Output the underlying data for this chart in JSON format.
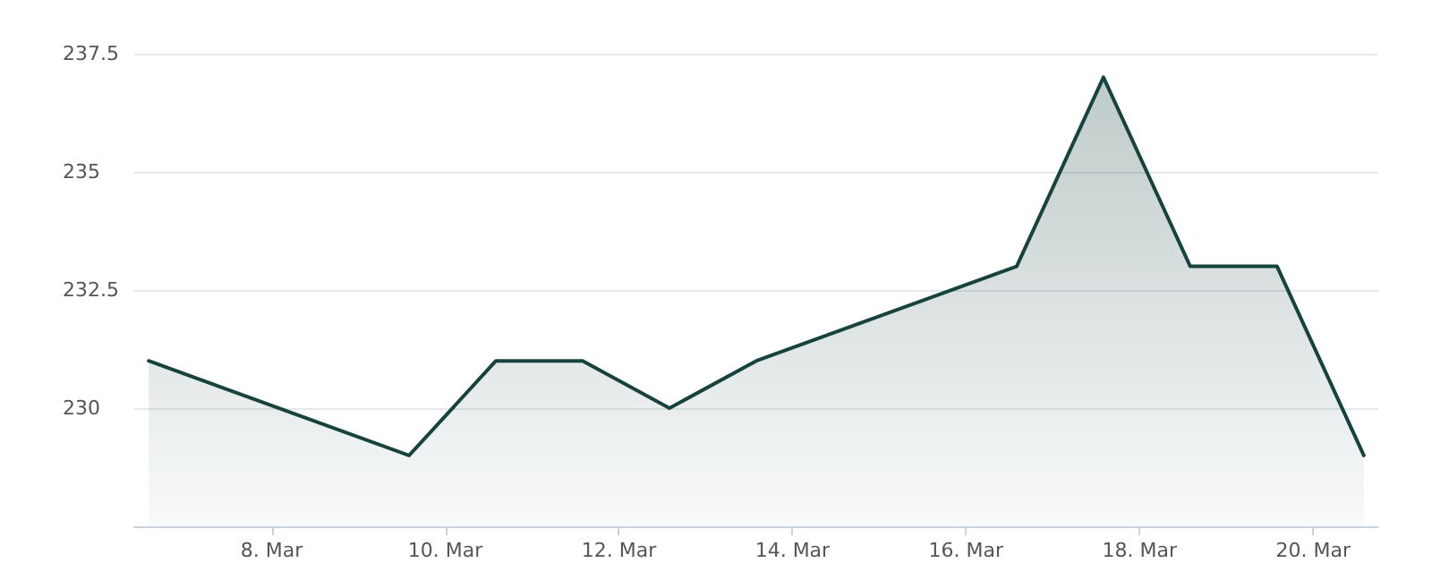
{
  "chart_data": {
    "type": "area",
    "x": [
      "--03-06T14:00",
      "--03-09T14:00",
      "--03-10T14:00",
      "--03-11T14:00",
      "--03-12T14:00",
      "--03-13T14:00",
      "--03-16T14:00",
      "--03-17T14:00",
      "--03-18T14:00",
      "--03-19T14:00",
      "--03-20T14:00"
    ],
    "series": [
      {
        "color": "#17433f",
        "values": [
          231,
          229,
          231,
          231,
          230,
          231,
          233,
          237,
          233,
          233,
          229
        ]
      }
    ],
    "xlim": [
      "--03-06T10:00",
      "--03-20T18:00"
    ],
    "xticks": [
      {
        "value": "--03-08",
        "label": "8. Mar"
      },
      {
        "value": "--03-10",
        "label": "10. Mar"
      },
      {
        "value": "--03-12",
        "label": "12. Mar"
      },
      {
        "value": "--03-14",
        "label": "14. Mar"
      },
      {
        "value": "--03-16",
        "label": "16. Mar"
      },
      {
        "value": "--03-18",
        "label": "18. Mar"
      },
      {
        "value": "--03-20",
        "label": "20. Mar"
      }
    ],
    "ylim": [
      227.5,
      237.5
    ],
    "yticks": [
      230,
      232.5,
      235,
      237.5
    ],
    "grid": "y",
    "marker": "none",
    "line_style": "solid"
  }
}
